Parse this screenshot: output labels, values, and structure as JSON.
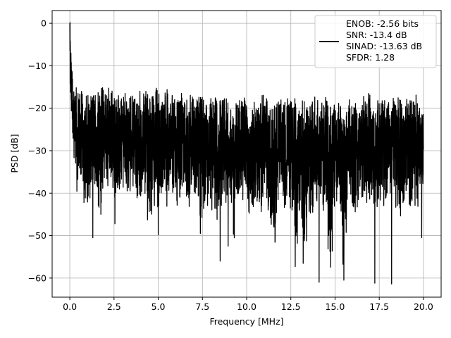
{
  "chart_data": {
    "type": "line",
    "title": "",
    "xlabel": "Frequency [MHz]",
    "ylabel": "PSD [dB]",
    "xlim": [
      -1.0,
      21.0
    ],
    "ylim": [
      -64.5,
      3.0
    ],
    "xticks": [
      0.0,
      2.5,
      5.0,
      7.5,
      10.0,
      12.5,
      15.0,
      17.5,
      20.0
    ],
    "xtick_labels": [
      "0.0",
      "2.5",
      "5.0",
      "7.5",
      "10.0",
      "12.5",
      "15.0",
      "17.5",
      "20.0"
    ],
    "yticks": [
      0,
      -10,
      -20,
      -30,
      -40,
      -50,
      -60
    ],
    "ytick_labels": [
      "0",
      "−10",
      "−20",
      "−30",
      "−40",
      "−50",
      "−60"
    ],
    "grid": true,
    "legend_position": "top-right",
    "legend": {
      "lines": [
        "ENOB: -2.56 bits",
        "SNR: -13.4 dB",
        "SINAD: -13.63 dB",
        "SFDR: 1.28"
      ]
    },
    "series": [
      {
        "color": "#000000",
        "x": [
          0.0,
          0.05,
          0.1,
          0.2,
          0.3,
          0.4,
          0.5,
          0.6,
          0.7,
          0.8,
          0.9,
          1.0,
          1.25,
          1.5,
          1.75,
          2.0,
          2.25,
          2.5,
          2.75,
          3.0,
          3.25,
          3.5,
          3.75,
          4.0,
          4.25,
          4.5,
          4.75,
          5.0,
          5.25,
          5.5,
          5.75,
          6.0,
          6.25,
          6.5,
          6.75,
          7.0,
          7.25,
          7.5,
          7.75,
          8.0,
          8.25,
          8.5,
          8.75,
          9.0,
          9.25,
          9.5,
          9.75,
          10.0,
          10.25,
          10.5,
          10.75,
          11.0,
          11.25,
          11.5,
          11.75,
          12.0,
          12.25,
          12.5,
          12.75,
          13.0,
          13.25,
          13.5,
          13.75,
          14.0,
          14.25,
          14.5,
          14.75,
          15.0,
          15.25,
          15.5,
          15.75,
          16.0,
          16.25,
          16.5,
          16.75,
          17.0,
          17.25,
          17.5,
          17.75,
          18.0,
          18.25,
          18.5,
          18.75,
          19.0,
          19.25,
          19.5,
          19.75,
          20.0
        ],
        "upper": [
          0,
          -5,
          -10,
          -14,
          -15,
          -17,
          -17,
          -15,
          -18,
          -17,
          -16,
          -16,
          -17,
          -17,
          -15,
          -16,
          -15,
          -17,
          -18,
          -17,
          -18,
          -17,
          -18,
          -17,
          -17,
          -18,
          -17,
          -16,
          -17,
          -16,
          -18,
          -18,
          -17,
          -19,
          -17,
          -18,
          -19,
          -17,
          -18,
          -19,
          -18,
          -18,
          -17,
          -19,
          -19,
          -18,
          -18,
          -19,
          -19,
          -20,
          -18,
          -18,
          -19,
          -19,
          -19,
          -19,
          -18,
          -19,
          -18,
          -19,
          -19,
          -20,
          -18,
          -18,
          -19,
          -18,
          -19,
          -19,
          -20,
          -18,
          -19,
          -19,
          -20,
          -19,
          -17,
          -18,
          -20,
          -19,
          -19,
          -18,
          -19,
          -18,
          -18,
          -19,
          -18,
          -17,
          -19,
          -19
        ],
        "lower": [
          -20,
          -24,
          -28,
          -33,
          -32,
          -43,
          -37,
          -44,
          -40,
          -43,
          -50,
          -46,
          -42,
          -40,
          -47,
          -38,
          -41,
          -40,
          -47,
          -39,
          -42,
          -40,
          -45,
          -41,
          -43,
          -49,
          -45,
          -46,
          -42,
          -44,
          -40,
          -44,
          -45,
          -43,
          -46,
          -40,
          -44,
          -56,
          -44,
          -44,
          -47,
          -46,
          -42,
          -44,
          -50,
          -43,
          -42,
          -45,
          -46,
          -44,
          -46,
          -41,
          -46,
          -57,
          -47,
          -45,
          -43,
          -44,
          -61,
          -45,
          -60,
          -45,
          -46,
          -44,
          -44,
          -48,
          -61,
          -44,
          -46,
          -61,
          -44,
          -46,
          -46,
          -43,
          -45,
          -41,
          -45,
          -44,
          -46,
          -42,
          -43,
          -45,
          -46,
          -43,
          -44,
          -45,
          -44,
          -43
        ],
        "spikes": [
          {
            "x": 1.3,
            "y": -50.5
          },
          {
            "x": 2.55,
            "y": -47.2
          },
          {
            "x": 5.0,
            "y": -49.8
          },
          {
            "x": 8.5,
            "y": -56.0
          },
          {
            "x": 8.95,
            "y": -52.5
          },
          {
            "x": 9.3,
            "y": -50.5
          },
          {
            "x": 12.75,
            "y": -57.3
          },
          {
            "x": 14.1,
            "y": -61.0
          },
          {
            "x": 15.5,
            "y": -60.5
          },
          {
            "x": 17.25,
            "y": -61.2
          },
          {
            "x": 18.2,
            "y": -61.4
          },
          {
            "x": 19.9,
            "y": -50.5
          }
        ]
      }
    ]
  }
}
